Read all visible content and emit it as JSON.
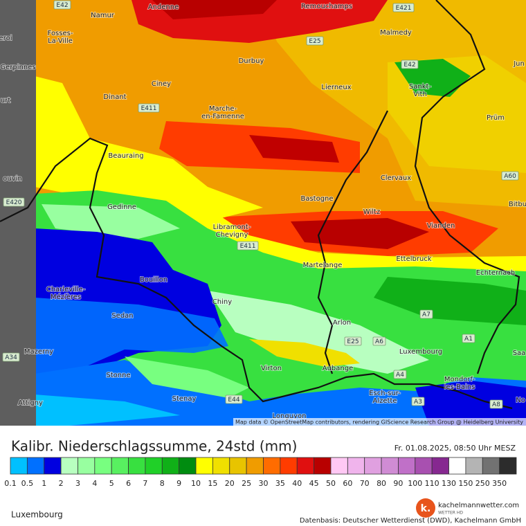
{
  "map": {
    "places": [
      {
        "lines": [
          "Namur"
        ]
      },
      {
        "lines": [
          "Andenne"
        ]
      },
      {
        "lines": [
          "Remouchamps"
        ]
      },
      {
        "lines": [
          "Malmedy"
        ]
      },
      {
        "lines": [
          "Fosses-",
          "La-Ville"
        ]
      },
      {
        "lines": [
          "Durbuy"
        ]
      },
      {
        "lines": [
          "Ciney"
        ]
      },
      {
        "lines": [
          "Lierneux"
        ]
      },
      {
        "lines": [
          "Sankt-",
          "Vith"
        ]
      },
      {
        "lines": [
          "Dinant"
        ]
      },
      {
        "lines": [
          "Marche-",
          "en-Famenne"
        ]
      },
      {
        "lines": [
          "Prüm"
        ]
      },
      {
        "lines": [
          "Beauraing"
        ]
      },
      {
        "lines": [
          "Clervaux"
        ]
      },
      {
        "lines": [
          "Bastogne"
        ]
      },
      {
        "lines": [
          "Gedinne"
        ]
      },
      {
        "lines": [
          "Wiltz"
        ]
      },
      {
        "lines": [
          "Vianden"
        ]
      },
      {
        "lines": [
          "Libramont-",
          "Chevigny"
        ]
      },
      {
        "lines": [
          "Martelange"
        ]
      },
      {
        "lines": [
          "Ettelbruck"
        ]
      },
      {
        "lines": [
          "Echternach"
        ]
      },
      {
        "lines": [
          "Charleville-",
          "Mézières"
        ]
      },
      {
        "lines": [
          "Bouillon"
        ]
      },
      {
        "lines": [
          "Chiny"
        ]
      },
      {
        "lines": [
          "Sedan"
        ]
      },
      {
        "lines": [
          "Arlon"
        ]
      },
      {
        "lines": [
          "Luxembourg"
        ]
      },
      {
        "lines": [
          "Mazerny"
        ]
      },
      {
        "lines": [
          "Virton"
        ]
      },
      {
        "lines": [
          "Aubange"
        ]
      },
      {
        "lines": [
          "Stonne"
        ]
      },
      {
        "lines": [
          "Mondorf-",
          "les-Bains"
        ]
      },
      {
        "lines": [
          "Esch-sur-",
          "Alzette"
        ]
      },
      {
        "lines": [
          "Stenay"
        ]
      },
      {
        "lines": [
          "Attigny"
        ]
      },
      {
        "lines": [
          "Longuyon"
        ]
      },
      {
        "lines": [
          "eroi"
        ]
      },
      {
        "lines": [
          "Gerpinnes"
        ]
      },
      {
        "lines": [
          "urt"
        ]
      },
      {
        "lines": [
          "ouvin"
        ]
      },
      {
        "lines": [
          "Jun"
        ]
      },
      {
        "lines": [
          "Bitbu"
        ]
      },
      {
        "lines": [
          "Saa"
        ]
      },
      {
        "lines": [
          "No"
        ]
      }
    ],
    "roads": [
      "E42",
      "E421",
      "E25",
      "E42",
      "E411",
      "A60",
      "E420",
      "E411",
      "A7",
      "E25",
      "A6",
      "A1",
      "A34",
      "A4",
      "E44",
      "A3",
      "A8"
    ],
    "attribution": "Map data © OpenStreetMap contributors, rendering GIScience Research Group @ Heidelberg University"
  },
  "legend": {
    "title": "Kalibr. Niederschlagssumme, 24std (mm)",
    "timestamp": "Fr. 01.08.2025, 08:50 Uhr MESZ",
    "items": [
      {
        "label": "0.1",
        "color": "#00c0ff"
      },
      {
        "label": "0.5",
        "color": "#0070ff"
      },
      {
        "label": "1",
        "color": "#0000e0"
      },
      {
        "label": "2",
        "color": "#b8ffc0"
      },
      {
        "label": "3",
        "color": "#98ffa0"
      },
      {
        "label": "4",
        "color": "#78ff80"
      },
      {
        "label": "5",
        "color": "#58f060"
      },
      {
        "label": "6",
        "color": "#38e040"
      },
      {
        "label": "7",
        "color": "#20d028"
      },
      {
        "label": "8",
        "color": "#10b018"
      },
      {
        "label": "9",
        "color": "#008c10"
      },
      {
        "label": "10",
        "color": "#ffff00"
      },
      {
        "label": "15",
        "color": "#f0e000"
      },
      {
        "label": "20",
        "color": "#e8c400"
      },
      {
        "label": "25",
        "color": "#f09c00"
      },
      {
        "label": "30",
        "color": "#ff6c00"
      },
      {
        "label": "35",
        "color": "#ff3c00"
      },
      {
        "label": "40",
        "color": "#e01010"
      },
      {
        "label": "45",
        "color": "#b80000"
      },
      {
        "label": "50",
        "color": "#ffc8f4"
      },
      {
        "label": "60",
        "color": "#f0b4ec"
      },
      {
        "label": "70",
        "color": "#e0a0e0"
      },
      {
        "label": "80",
        "color": "#d08cd4"
      },
      {
        "label": "90",
        "color": "#c070c8"
      },
      {
        "label": "100",
        "color": "#a850b0"
      },
      {
        "label": "110",
        "color": "#862890"
      },
      {
        "label": "130",
        "color": "#ffffff"
      },
      {
        "label": "150",
        "color": "#b4b4b4"
      },
      {
        "label": "250",
        "color": "#727272"
      },
      {
        "label": "350",
        "color": "#2c2c2c"
      }
    ]
  },
  "footer": {
    "region": "Luxembourg",
    "logo": "k.",
    "brand": "kachelmannwetter.com",
    "brand_sub": "WETTER HD",
    "source": "Datenbasis: Deutscher Wetterdienst (DWD), Kachelmann GmbH"
  }
}
